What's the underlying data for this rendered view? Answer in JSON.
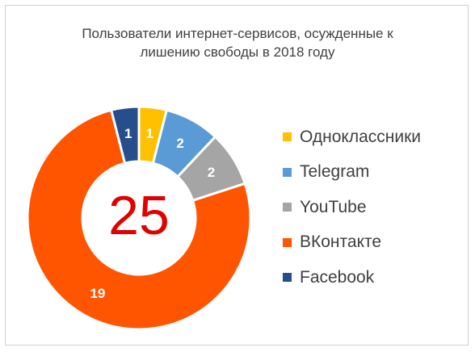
{
  "chart_data": {
    "type": "pie",
    "title_lines": [
      "Пользователи интернет-сервисов, осужденные к",
      "лишению свободы в 2018 году"
    ],
    "center_label": "25",
    "categories": [
      "Одноклассники",
      "Telegram",
      "YouTube",
      "ВКонтакте",
      "Facebook"
    ],
    "values": [
      1,
      2,
      2,
      19,
      1
    ],
    "colors": [
      "#FFC000",
      "#5B9BD5",
      "#A5A5A5",
      "#FF5500",
      "#264D8C"
    ],
    "legend_position": "right"
  }
}
